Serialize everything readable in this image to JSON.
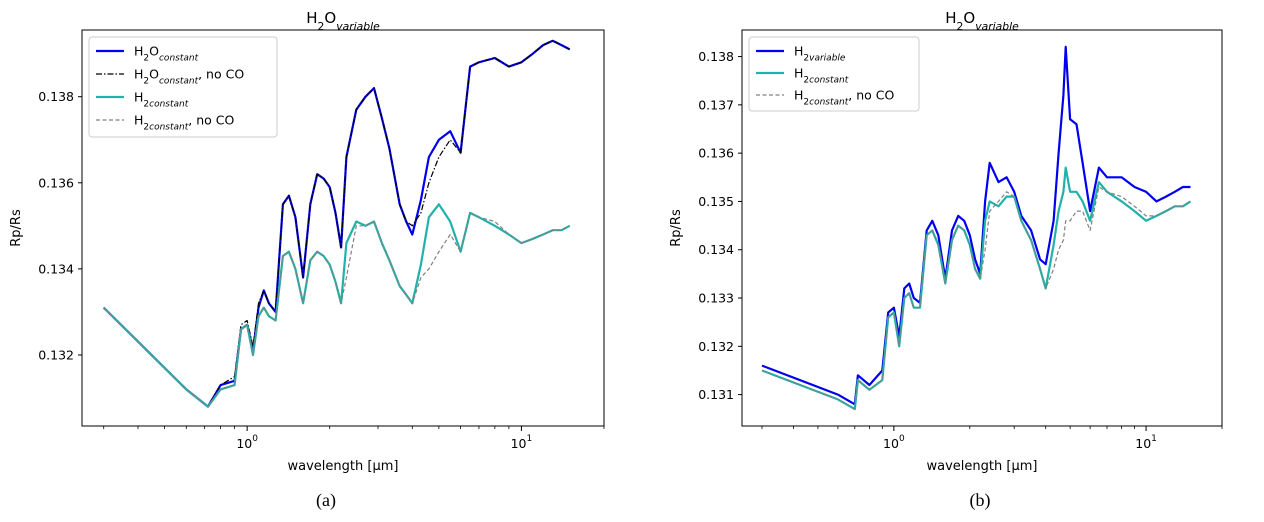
{
  "chart_data": [
    {
      "type": "line",
      "title": "H2O variable",
      "xlabel": "wavelength [μm]",
      "ylabel": "Rp/Rs",
      "xscale": "log",
      "xlim": [
        0.25,
        20
      ],
      "ylim": [
        0.13035,
        0.13955
      ],
      "yticks": [
        0.132,
        0.134,
        0.136,
        0.138
      ],
      "ytick_labels": [
        "0.132",
        "0.134",
        "0.136",
        "0.138"
      ],
      "xticks": [
        1,
        10
      ],
      "xtick_labels": [
        "10^0",
        "10^1"
      ],
      "legend_position": "upper-left",
      "caption": "(a)",
      "series": [
        {
          "name": "H2O constant",
          "color": "#0000ee",
          "style": "solid",
          "width": 2.2,
          "x": [
            0.3,
            0.6,
            0.72,
            0.8,
            0.9,
            0.95,
            1.0,
            1.05,
            1.1,
            1.15,
            1.2,
            1.27,
            1.35,
            1.42,
            1.5,
            1.6,
            1.7,
            1.8,
            1.9,
            2.0,
            2.1,
            2.2,
            2.3,
            2.5,
            2.7,
            2.9,
            3.1,
            3.3,
            3.6,
            3.8,
            4.0,
            4.3,
            4.6,
            5.0,
            5.5,
            6.0,
            6.5,
            7.0,
            8.0,
            9.0,
            10.0,
            11.0,
            12.0,
            13.0,
            14.0,
            15.0
          ],
          "y": [
            0.1331,
            0.1312,
            0.1308,
            0.1313,
            0.1314,
            0.1326,
            0.1327,
            0.1321,
            0.1331,
            0.1335,
            0.1332,
            0.133,
            0.1355,
            0.1357,
            0.1352,
            0.1338,
            0.1355,
            0.1362,
            0.1361,
            0.1359,
            0.1353,
            0.1345,
            0.1366,
            0.1377,
            0.138,
            0.1382,
            0.1375,
            0.1368,
            0.1355,
            0.1351,
            0.1348,
            0.1356,
            0.1366,
            0.137,
            0.1372,
            0.1367,
            0.1387,
            0.1388,
            0.1389,
            0.1387,
            0.1388,
            0.139,
            0.1392,
            0.1393,
            0.1392,
            0.1391
          ]
        },
        {
          "name": "H2O constant, no CO",
          "color": "#000000",
          "style": "dashdot",
          "width": 1.2,
          "x": [
            0.3,
            0.6,
            0.72,
            0.8,
            0.9,
            0.95,
            1.0,
            1.05,
            1.1,
            1.15,
            1.2,
            1.27,
            1.35,
            1.42,
            1.5,
            1.6,
            1.7,
            1.8,
            1.9,
            2.0,
            2.1,
            2.2,
            2.3,
            2.5,
            2.7,
            2.9,
            3.1,
            3.3,
            3.6,
            3.8,
            4.0,
            4.3,
            4.6,
            5.0,
            5.5,
            6.0,
            6.5,
            7.0,
            8.0,
            9.0,
            10.0,
            11.0,
            12.0,
            13.0,
            14.0,
            15.0
          ],
          "y": [
            0.1331,
            0.1312,
            0.1308,
            0.1313,
            0.1315,
            0.1327,
            0.1328,
            0.1322,
            0.1332,
            0.1335,
            0.1332,
            0.133,
            0.1355,
            0.1357,
            0.1352,
            0.1338,
            0.1355,
            0.1362,
            0.1361,
            0.1359,
            0.1353,
            0.1345,
            0.1366,
            0.1377,
            0.138,
            0.1382,
            0.1375,
            0.1368,
            0.1355,
            0.1351,
            0.135,
            0.1353,
            0.136,
            0.1366,
            0.137,
            0.1367,
            0.1387,
            0.1388,
            0.1389,
            0.1387,
            0.1388,
            0.139,
            0.1392,
            0.1393,
            0.1392,
            0.1391
          ]
        },
        {
          "name": "H2 constant",
          "color": "#20b2aa",
          "style": "solid",
          "width": 2.2,
          "x": [
            0.3,
            0.6,
            0.72,
            0.8,
            0.9,
            0.95,
            1.0,
            1.05,
            1.1,
            1.15,
            1.2,
            1.27,
            1.35,
            1.42,
            1.5,
            1.6,
            1.7,
            1.8,
            1.9,
            2.0,
            2.1,
            2.2,
            2.3,
            2.5,
            2.7,
            2.9,
            3.1,
            3.3,
            3.6,
            3.8,
            4.0,
            4.3,
            4.6,
            5.0,
            5.5,
            6.0,
            6.5,
            7.0,
            8.0,
            9.0,
            10.0,
            11.0,
            12.0,
            13.0,
            14.0,
            15.0
          ],
          "y": [
            0.1331,
            0.1312,
            0.1308,
            0.1312,
            0.1313,
            0.1326,
            0.1327,
            0.132,
            0.1329,
            0.1331,
            0.1329,
            0.1328,
            0.1343,
            0.1344,
            0.134,
            0.1332,
            0.1342,
            0.1344,
            0.1343,
            0.1341,
            0.1337,
            0.1332,
            0.1346,
            0.1351,
            0.135,
            0.1351,
            0.1346,
            0.1342,
            0.1336,
            0.1334,
            0.1332,
            0.1341,
            0.1352,
            0.1355,
            0.1351,
            0.1344,
            0.1353,
            0.1352,
            0.135,
            0.1348,
            0.1346,
            0.1347,
            0.1348,
            0.1349,
            0.1349,
            0.135
          ]
        },
        {
          "name": "H2 constant, no CO",
          "color": "#808080",
          "style": "dashed",
          "width": 1.2,
          "x": [
            0.3,
            0.6,
            0.72,
            0.8,
            0.9,
            0.95,
            1.0,
            1.05,
            1.1,
            1.15,
            1.2,
            1.27,
            1.35,
            1.42,
            1.5,
            1.6,
            1.7,
            1.8,
            1.9,
            2.0,
            2.1,
            2.2,
            2.3,
            2.5,
            2.7,
            2.9,
            3.1,
            3.3,
            3.6,
            3.8,
            4.0,
            4.3,
            4.6,
            5.0,
            5.5,
            6.0,
            6.5,
            7.0,
            8.0,
            9.0,
            10.0,
            11.0,
            12.0,
            13.0,
            14.0,
            15.0
          ],
          "y": [
            0.1331,
            0.1312,
            0.1308,
            0.1312,
            0.1313,
            0.1326,
            0.1327,
            0.132,
            0.1329,
            0.1331,
            0.1329,
            0.1328,
            0.1343,
            0.1344,
            0.134,
            0.1332,
            0.1342,
            0.1344,
            0.1343,
            0.1341,
            0.1337,
            0.1332,
            0.1338,
            0.135,
            0.135,
            0.1351,
            0.1346,
            0.1342,
            0.1336,
            0.1334,
            0.1332,
            0.1338,
            0.134,
            0.1344,
            0.1348,
            0.1344,
            0.1353,
            0.1352,
            0.1351,
            0.1348,
            0.1346,
            0.1347,
            0.1348,
            0.1349,
            0.1349,
            0.135
          ]
        }
      ]
    },
    {
      "type": "line",
      "title": "H2O variable",
      "xlabel": "wavelength [μm]",
      "ylabel": "Rp/Rs",
      "xscale": "log",
      "xlim": [
        0.25,
        20
      ],
      "ylim": [
        0.13035,
        0.13855
      ],
      "yticks": [
        0.131,
        0.132,
        0.133,
        0.134,
        0.135,
        0.136,
        0.137,
        0.138
      ],
      "ytick_labels": [
        "0.131",
        "0.132",
        "0.133",
        "0.134",
        "0.135",
        "0.136",
        "0.137",
        "0.138"
      ],
      "xticks": [
        1,
        10
      ],
      "xtick_labels": [
        "10^0",
        "10^1"
      ],
      "legend_position": "upper-left",
      "caption": "(b)",
      "series": [
        {
          "name": "H2 variable",
          "color": "#0000ee",
          "style": "solid",
          "width": 2.2,
          "x": [
            0.3,
            0.6,
            0.7,
            0.72,
            0.8,
            0.9,
            0.95,
            1.0,
            1.05,
            1.1,
            1.15,
            1.2,
            1.27,
            1.35,
            1.42,
            1.5,
            1.6,
            1.7,
            1.8,
            1.9,
            2.0,
            2.1,
            2.2,
            2.3,
            2.4,
            2.6,
            2.8,
            3.0,
            3.2,
            3.5,
            3.8,
            4.0,
            4.3,
            4.5,
            4.7,
            4.8,
            5.0,
            5.3,
            5.6,
            6.0,
            6.5,
            7.0,
            8.0,
            9.0,
            10.0,
            11.0,
            12.0,
            13.0,
            14.0,
            15.0
          ],
          "y": [
            0.1316,
            0.131,
            0.1308,
            0.1314,
            0.1312,
            0.1315,
            0.1327,
            0.1328,
            0.1322,
            0.1332,
            0.1333,
            0.133,
            0.1329,
            0.1344,
            0.1346,
            0.1343,
            0.1334,
            0.1344,
            0.1347,
            0.1346,
            0.1343,
            0.1338,
            0.1335,
            0.135,
            0.1358,
            0.1354,
            0.1355,
            0.1352,
            0.1347,
            0.1344,
            0.1338,
            0.1337,
            0.1346,
            0.136,
            0.1372,
            0.1382,
            0.1367,
            0.1366,
            0.1358,
            0.1348,
            0.1357,
            0.1355,
            0.1355,
            0.1353,
            0.1352,
            0.135,
            0.1351,
            0.1352,
            0.1353,
            0.1353
          ]
        },
        {
          "name": "H2 constant",
          "color": "#20b2aa",
          "style": "solid",
          "width": 2.2,
          "x": [
            0.3,
            0.6,
            0.7,
            0.72,
            0.8,
            0.9,
            0.95,
            1.0,
            1.05,
            1.1,
            1.15,
            1.2,
            1.27,
            1.35,
            1.42,
            1.5,
            1.6,
            1.7,
            1.8,
            1.9,
            2.0,
            2.1,
            2.2,
            2.3,
            2.4,
            2.6,
            2.8,
            3.0,
            3.2,
            3.5,
            3.8,
            4.0,
            4.3,
            4.5,
            4.7,
            4.8,
            5.0,
            5.3,
            5.6,
            6.0,
            6.5,
            7.0,
            8.0,
            9.0,
            10.0,
            11.0,
            12.0,
            13.0,
            14.0,
            15.0
          ],
          "y": [
            0.1315,
            0.1309,
            0.1307,
            0.1313,
            0.1311,
            0.1313,
            0.1326,
            0.1327,
            0.132,
            0.133,
            0.1331,
            0.1328,
            0.1328,
            0.1343,
            0.1344,
            0.1341,
            0.1333,
            0.1342,
            0.1345,
            0.1344,
            0.1341,
            0.1336,
            0.1334,
            0.1346,
            0.135,
            0.1349,
            0.1351,
            0.1351,
            0.1346,
            0.1342,
            0.1336,
            0.1332,
            0.1341,
            0.1348,
            0.1352,
            0.1357,
            0.1352,
            0.1352,
            0.135,
            0.1346,
            0.1354,
            0.1352,
            0.135,
            0.1348,
            0.1346,
            0.1347,
            0.1348,
            0.1349,
            0.1349,
            0.135
          ]
        },
        {
          "name": "H2 constant, no CO",
          "color": "#808080",
          "style": "dashed",
          "width": 1.2,
          "x": [
            0.3,
            0.6,
            0.7,
            0.72,
            0.8,
            0.9,
            0.95,
            1.0,
            1.05,
            1.1,
            1.15,
            1.2,
            1.27,
            1.35,
            1.42,
            1.5,
            1.6,
            1.7,
            1.8,
            1.9,
            2.0,
            2.1,
            2.2,
            2.3,
            2.4,
            2.6,
            2.8,
            3.0,
            3.2,
            3.5,
            3.8,
            4.0,
            4.3,
            4.5,
            4.7,
            4.8,
            5.0,
            5.3,
            5.6,
            6.0,
            6.5,
            7.0,
            8.0,
            9.0,
            10.0,
            11.0,
            12.0,
            13.0,
            14.0,
            15.0
          ],
          "y": [
            0.1315,
            0.1309,
            0.1307,
            0.1313,
            0.1311,
            0.1313,
            0.1326,
            0.1327,
            0.132,
            0.133,
            0.1331,
            0.1328,
            0.1328,
            0.1343,
            0.1344,
            0.1341,
            0.1333,
            0.1342,
            0.1345,
            0.1344,
            0.1341,
            0.1336,
            0.1334,
            0.134,
            0.1348,
            0.135,
            0.1352,
            0.1351,
            0.1346,
            0.1342,
            0.1336,
            0.1332,
            0.1336,
            0.134,
            0.1342,
            0.1346,
            0.1346,
            0.1348,
            0.1348,
            0.1344,
            0.1353,
            0.1352,
            0.1351,
            0.1349,
            0.1347,
            0.1347,
            0.1348,
            0.1349,
            0.1349,
            0.135
          ]
        }
      ]
    }
  ]
}
